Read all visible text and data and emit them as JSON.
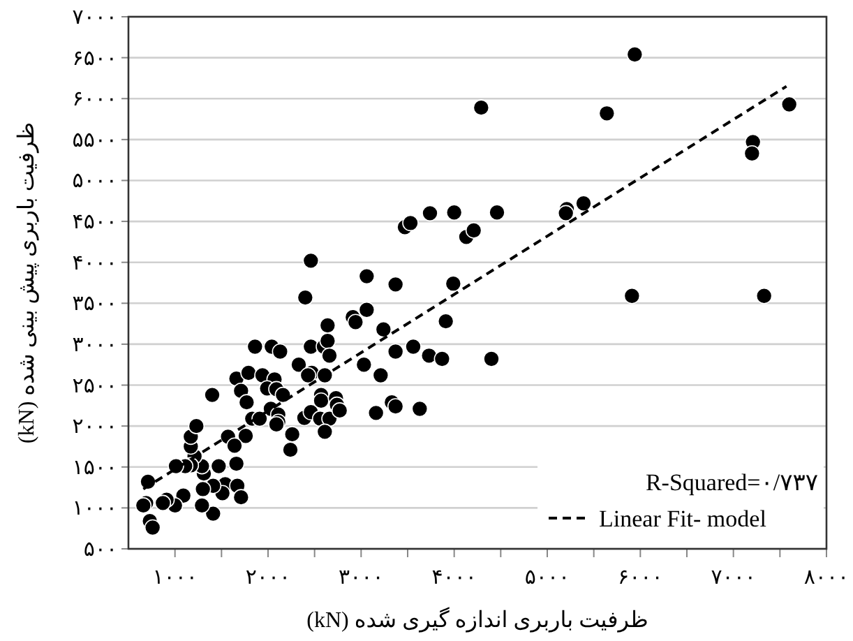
{
  "chart_data": {
    "type": "scatter",
    "xlabel": "ظرفیت باربری اندازه گیری شده (kN)",
    "ylabel": "ظرفیت باربری پیش بینی شده (kN)",
    "annotations": [
      "R-Squared=۰/۷۳۷"
    ],
    "xlim": [
      500,
      8000
    ],
    "ylim": [
      500,
      7000
    ],
    "xticks": [
      {
        "value": 1000,
        "label": "۱۰۰۰"
      },
      {
        "value": 1500,
        "label": null
      },
      {
        "value": 2000,
        "label": "۲۰۰۰"
      },
      {
        "value": 2500,
        "label": null
      },
      {
        "value": 3000,
        "label": "۳۰۰۰"
      },
      {
        "value": 3500,
        "label": null
      },
      {
        "value": 4000,
        "label": "۴۰۰۰"
      },
      {
        "value": 4500,
        "label": null
      },
      {
        "value": 5000,
        "label": "۵۰۰۰"
      },
      {
        "value": 5500,
        "label": null
      },
      {
        "value": 6000,
        "label": "۶۰۰۰"
      },
      {
        "value": 6500,
        "label": null
      },
      {
        "value": 7000,
        "label": "۷۰۰۰"
      },
      {
        "value": 7500,
        "label": null
      },
      {
        "value": 8000,
        "label": "۸۰۰۰"
      }
    ],
    "yticks": [
      {
        "value": 500,
        "label": "۵۰۰"
      },
      {
        "value": 1000,
        "label": "۱۰۰۰"
      },
      {
        "value": 1500,
        "label": "۱۵۰۰"
      },
      {
        "value": 2000,
        "label": "۲۰۰۰"
      },
      {
        "value": 2500,
        "label": "۲۵۰۰"
      },
      {
        "value": 3000,
        "label": "۳۰۰۰"
      },
      {
        "value": 3500,
        "label": "۳۵۰۰"
      },
      {
        "value": 4000,
        "label": "۴۰۰۰"
      },
      {
        "value": 4500,
        "label": "۴۵۰۰"
      },
      {
        "value": 5000,
        "label": "۵۰۰۰"
      },
      {
        "value": 5500,
        "label": "۵۵۰۰"
      },
      {
        "value": 6000,
        "label": "۶۰۰۰"
      },
      {
        "value": 6500,
        "label": "۶۵۰۰"
      },
      {
        "value": 7000,
        "label": "۷۰۰۰"
      }
    ],
    "grid": "y",
    "legend": "bottom right",
    "series": [
      {
        "color": "#000000",
        "marker": "circle",
        "x": [
          2460,
          2400,
          2640,
          3060,
          2910,
          2940,
          3060,
          3370,
          3240,
          3470,
          3530,
          3740,
          4290,
          5940,
          5640,
          7600,
          7210,
          7200,
          4000,
          4130,
          4210,
          4460,
          5210,
          5200,
          5390,
          3990,
          3910,
          5910,
          7330,
          1860,
          2040,
          2130,
          2330,
          2460,
          2600,
          2640,
          2660,
          2470,
          2430,
          2610,
          3030,
          3210,
          3370,
          3560,
          3730,
          1660,
          1790,
          1940,
          2070,
          1990,
          2090,
          2160,
          1710,
          1770,
          1400,
          2030,
          2110,
          2110,
          2090,
          1830,
          1910,
          1760,
          1570,
          1640,
          1660,
          1470,
          1540,
          1670,
          1710,
          1510,
          1410,
          1300,
          1410,
          1290,
          1310,
          1290,
          1210,
          1170,
          1170,
          1230,
          1170,
          1110,
          1010,
          1090,
          1000,
          910,
          870,
          710,
          690,
          660,
          730,
          760,
          2260,
          2240,
          2390,
          2460,
          2560,
          2660,
          2610,
          2570,
          2570,
          2730,
          2740,
          2770,
          3160,
          3330,
          3370,
          3630,
          3870,
          4400
        ],
        "values": [
          4020,
          3570,
          3230,
          3830,
          3330,
          3270,
          3420,
          3730,
          3180,
          4430,
          4480,
          4600,
          5890,
          6540,
          5820,
          5930,
          5470,
          5330,
          4610,
          4310,
          4390,
          4610,
          4650,
          4600,
          4720,
          3740,
          3280,
          3590,
          3590,
          2970,
          2970,
          2910,
          2750,
          2970,
          2970,
          3040,
          2860,
          2650,
          2620,
          2620,
          2750,
          2620,
          2910,
          2970,
          2860,
          2580,
          2650,
          2620,
          2570,
          2460,
          2450,
          2380,
          2430,
          2290,
          2380,
          2210,
          2140,
          2050,
          2020,
          2090,
          2090,
          1880,
          1870,
          1760,
          1540,
          1510,
          1290,
          1270,
          1130,
          1180,
          1270,
          1230,
          930,
          1030,
          1420,
          1510,
          1630,
          1750,
          1870,
          2000,
          1520,
          1510,
          1510,
          1150,
          1030,
          1100,
          1060,
          1320,
          1060,
          1030,
          840,
          760,
          1900,
          1710,
          2100,
          2170,
          2090,
          2090,
          1930,
          2380,
          2310,
          2340,
          2260,
          2190,
          2160,
          2290,
          2240,
          2210,
          2820,
          2820
        ]
      },
      {
        "type": "line",
        "name": "Linear Fit- model",
        "color": "#000000",
        "marker": "none",
        "line_style": "dashed",
        "x": [
          660,
          7570
        ],
        "values": [
          1230,
          6150
        ]
      }
    ]
  }
}
